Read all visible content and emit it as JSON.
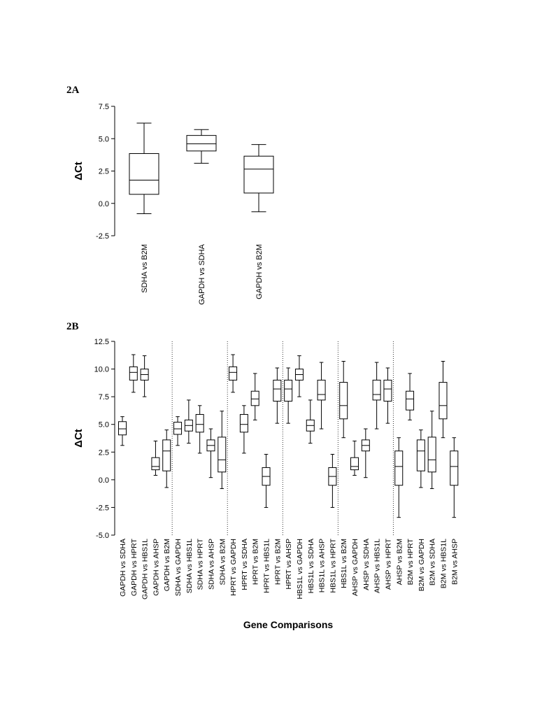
{
  "panels": {
    "a_label": "2A",
    "b_label": "2B"
  },
  "chart_data": [
    {
      "type": "box",
      "panel": "2A",
      "title": "",
      "xlabel": "",
      "ylabel": "ΔCt",
      "ylim": [
        -2.5,
        7.5
      ],
      "yticks": [
        -2.5,
        0.0,
        2.5,
        5.0,
        7.5
      ],
      "ytick_labels": [
        "-2.5",
        "0.0",
        "2.5",
        "5.0",
        "7.5"
      ],
      "grid": false,
      "categories": [
        "SDHA vs B2M",
        "GAPDH vs SDHA",
        "GAPDH vs B2M"
      ],
      "boxes": [
        {
          "min": -0.8,
          "q1": 0.7,
          "median": 1.8,
          "q3": 3.85,
          "max": 6.2
        },
        {
          "min": 3.1,
          "q1": 4.05,
          "median": 4.6,
          "q3": 5.25,
          "max": 5.7
        },
        {
          "min": -0.65,
          "q1": 0.8,
          "median": 2.65,
          "q3": 3.65,
          "max": 4.55
        }
      ]
    },
    {
      "type": "box",
      "panel": "2B",
      "title": "",
      "xlabel": "Gene Comparisons",
      "ylabel": "ΔCt",
      "ylim": [
        -5.0,
        12.5
      ],
      "yticks": [
        -5.0,
        -2.5,
        0.0,
        2.5,
        5.0,
        7.5,
        10.0,
        12.5
      ],
      "ytick_labels": [
        "-5.0",
        "-2.5",
        "0.0",
        "2.5",
        "5.0",
        "7.5",
        "10.0",
        "12.5"
      ],
      "grid": false,
      "group_separators_after_index": [
        4,
        9,
        14,
        19,
        24
      ],
      "categories": [
        "GAPDH vs SDHA",
        "GAPDH vs HPRT",
        "GAPDH vs HBS1L",
        "GAPDH vs AHSP",
        "GAPDH vs B2M",
        "SDHA vs GAPDH",
        "SDHA vs HBS1L",
        "SDHA vs HPRT",
        "SDHA vs AHSP",
        "SDHA vs B2M",
        "HPRT vs GAPDH",
        "HPRT vs SDHA",
        "HPRT vs B2M",
        "HPRT vs HBS1L",
        "HPRT vs B2M",
        "HPRT vs AHSP",
        "HBS1L vs GAPDH",
        "HBS1L vs SDHA",
        "HBS1L vs AHSP",
        "HBS1L vs HPRT",
        "HBS1L vs B2M",
        "AHSP vs GAPDH",
        "AHSP vs SDHA",
        "AHSP vs HBS1L",
        "AHSP vs HPRT",
        "AHSP vs B2M",
        "B2M vs HPRT",
        "B2M vs GAPDH",
        "B2M vs SDHA",
        "B2M vs HBS1L",
        "B2M vs AHSP"
      ],
      "boxes": [
        {
          "min": 3.1,
          "q1": 4.05,
          "median": 4.6,
          "q3": 5.25,
          "max": 5.7
        },
        {
          "min": 7.9,
          "q1": 9.0,
          "median": 9.7,
          "q3": 10.2,
          "max": 11.3
        },
        {
          "min": 7.5,
          "q1": 9.0,
          "median": 9.5,
          "q3": 10.0,
          "max": 11.2
        },
        {
          "min": 0.4,
          "q1": 0.9,
          "median": 1.2,
          "q3": 2.0,
          "max": 3.5
        },
        {
          "min": -0.7,
          "q1": 0.8,
          "median": 2.6,
          "q3": 3.6,
          "max": 4.5
        },
        {
          "min": 3.1,
          "q1": 4.1,
          "median": 4.6,
          "q3": 5.2,
          "max": 5.7
        },
        {
          "min": 3.3,
          "q1": 4.4,
          "median": 4.9,
          "q3": 5.4,
          "max": 7.2
        },
        {
          "min": 2.4,
          "q1": 4.3,
          "median": 5.0,
          "q3": 5.9,
          "max": 6.7
        },
        {
          "min": 0.2,
          "q1": 2.6,
          "median": 3.1,
          "q3": 3.6,
          "max": 4.6
        },
        {
          "min": -0.8,
          "q1": 0.7,
          "median": 1.8,
          "q3": 3.85,
          "max": 6.2
        },
        {
          "min": 7.9,
          "q1": 9.0,
          "median": 9.7,
          "q3": 10.2,
          "max": 11.3
        },
        {
          "min": 2.4,
          "q1": 4.3,
          "median": 5.0,
          "q3": 5.9,
          "max": 6.7
        },
        {
          "min": 5.4,
          "q1": 6.7,
          "median": 7.3,
          "q3": 8.0,
          "max": 9.6
        },
        {
          "min": -2.5,
          "q1": -0.5,
          "median": 0.3,
          "q3": 1.1,
          "max": 2.3
        },
        {
          "min": 5.1,
          "q1": 7.1,
          "median": 8.2,
          "q3": 9.0,
          "max": 10.1
        },
        {
          "min": 5.1,
          "q1": 7.1,
          "median": 8.2,
          "q3": 9.0,
          "max": 10.1
        },
        {
          "min": 7.5,
          "q1": 9.0,
          "median": 9.5,
          "q3": 10.0,
          "max": 11.2
        },
        {
          "min": 3.3,
          "q1": 4.4,
          "median": 4.9,
          "q3": 5.4,
          "max": 7.2
        },
        {
          "min": 4.6,
          "q1": 7.2,
          "median": 7.7,
          "q3": 9.0,
          "max": 10.6
        },
        {
          "min": -2.5,
          "q1": -0.5,
          "median": 0.3,
          "q3": 1.1,
          "max": 2.3
        },
        {
          "min": 3.8,
          "q1": 5.5,
          "median": 6.7,
          "q3": 8.8,
          "max": 10.7
        },
        {
          "min": 0.4,
          "q1": 0.9,
          "median": 1.2,
          "q3": 2.0,
          "max": 3.5
        },
        {
          "min": 0.2,
          "q1": 2.6,
          "median": 3.1,
          "q3": 3.6,
          "max": 4.6
        },
        {
          "min": 4.6,
          "q1": 7.2,
          "median": 7.7,
          "q3": 9.0,
          "max": 10.6
        },
        {
          "min": 5.1,
          "q1": 7.1,
          "median": 8.2,
          "q3": 9.0,
          "max": 10.1
        },
        {
          "min": -3.4,
          "q1": -0.5,
          "median": 1.2,
          "q3": 2.6,
          "max": 3.8
        },
        {
          "min": 5.4,
          "q1": 6.3,
          "median": 7.3,
          "q3": 8.0,
          "max": 9.6
        },
        {
          "min": -0.7,
          "q1": 0.8,
          "median": 2.6,
          "q3": 3.6,
          "max": 4.5
        },
        {
          "min": -0.8,
          "q1": 0.7,
          "median": 1.8,
          "q3": 3.85,
          "max": 6.2
        },
        {
          "min": 3.8,
          "q1": 5.5,
          "median": 6.7,
          "q3": 8.8,
          "max": 10.7
        },
        {
          "min": -3.4,
          "q1": -0.5,
          "median": 1.2,
          "q3": 2.6,
          "max": 3.8
        }
      ]
    }
  ]
}
